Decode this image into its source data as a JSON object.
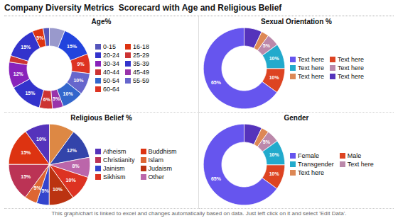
{
  "title": "Company Diversity Metrics  Scorecard with Age and Religious Belief",
  "annotations": [
    "This graph/chart is linked to excel and changes automatically based on data. Just left click on it and select 'Edit Data'."
  ],
  "chart_data": [
    {
      "type": "donut",
      "title": "Age%",
      "categories": [
        "0-15",
        "16-18",
        "20-24",
        "25-29",
        "30-34",
        "35-39",
        "40-44",
        "45-49",
        "50-54",
        "55-59",
        "60-64",
        null,
        null
      ],
      "values": [
        3,
        5,
        15,
        3,
        12,
        15,
        6,
        5,
        10,
        10,
        9,
        15,
        7
      ],
      "value_labels": [
        null,
        "5%",
        "15%",
        null,
        "12%",
        "15%",
        "6%",
        "5%",
        "10%",
        "10%",
        "9%",
        "15%",
        null
      ],
      "colors": [
        "#5555bb",
        "#dd3311",
        "#3333cc",
        "#cc3333",
        "#8822bb",
        "#3333cc",
        "#cc3333",
        "#9933aa",
        "#3366cc",
        "#6666cc",
        "#dd3322",
        "#2244dd",
        "#9999cc"
      ],
      "data_labels": true
    },
    {
      "type": "donut",
      "title": "Sexual Orientation %",
      "categories": [
        "Text here",
        "Text here",
        "Text here",
        "Text here",
        "Text here",
        "Text here"
      ],
      "values": [
        65,
        10,
        10,
        5,
        3,
        7
      ],
      "value_labels": [
        "65%",
        "10%",
        "10%",
        "5%",
        null,
        null
      ],
      "colors": [
        "#6655ee",
        "#dd4422",
        "#22aacc",
        "#bb88aa",
        "#dd8855",
        "#5533bb"
      ],
      "data_labels": true
    },
    {
      "type": "pie",
      "title": "Religious Belief %",
      "categories": [
        "Atheism",
        "Buddhism",
        "Christianity",
        "Islam",
        "Jainism",
        "Judaism",
        "Sikhism",
        "Other",
        null,
        null
      ],
      "values": [
        10,
        15,
        15,
        5,
        5,
        10,
        10,
        8,
        12,
        10
      ],
      "value_labels": [
        "10%",
        "15%",
        "15%",
        "5%",
        "5%",
        "10%",
        "10%",
        "8%",
        "12%",
        null
      ],
      "colors": [
        "#5533bb",
        "#dd3311",
        "#bb3355",
        "#dd6633",
        "#3344cc",
        "#bb3311",
        "#dd3322",
        "#bb66aa",
        "#3344aa",
        "#dd8844"
      ],
      "data_labels": true
    },
    {
      "type": "donut",
      "title": "Gender",
      "categories": [
        "Female",
        "Male",
        "Transgender",
        "Text here",
        "Text here",
        null
      ],
      "values": [
        65,
        10,
        10,
        5,
        3,
        7
      ],
      "value_labels": [
        "65%",
        "10%",
        "10%",
        "5%",
        null,
        null
      ],
      "colors": [
        "#6655ee",
        "#dd4422",
        "#22aacc",
        "#bb88aa",
        "#dd8855",
        "#5533bb"
      ],
      "data_labels": true
    }
  ]
}
